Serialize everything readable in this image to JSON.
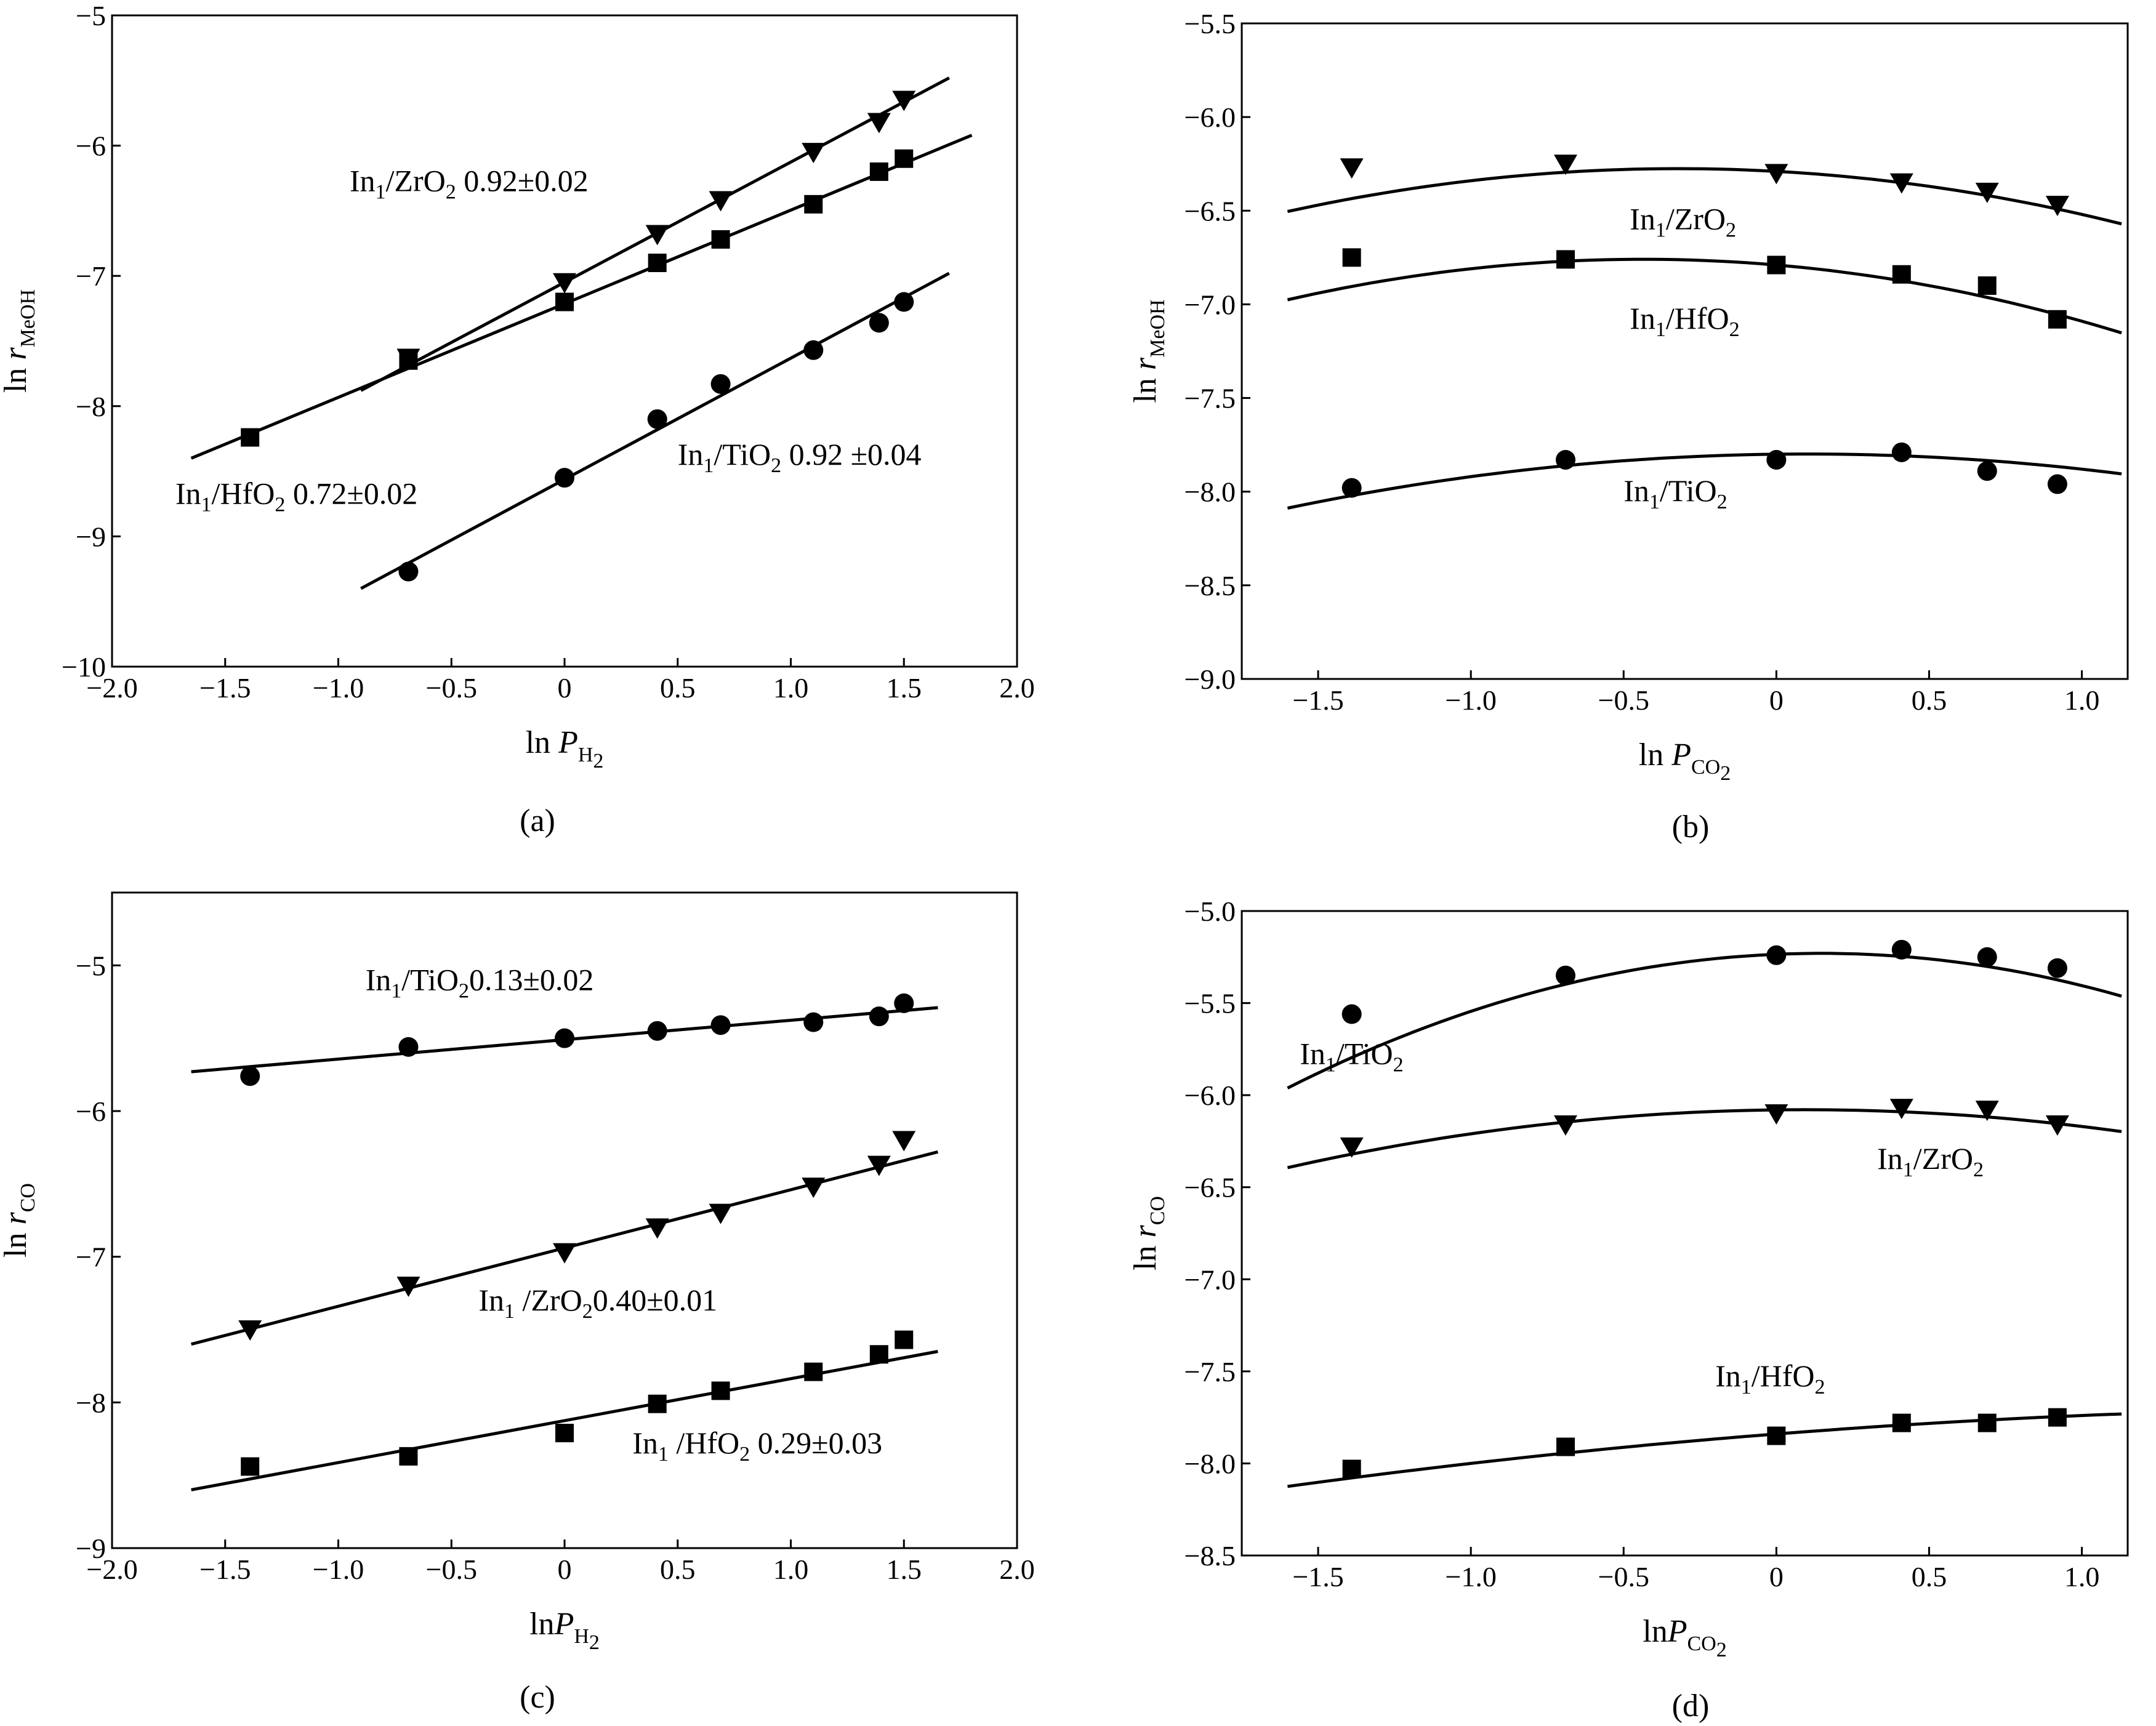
{
  "chart_data": [
    {
      "id": "a",
      "type": "scatter",
      "caption": "(a)",
      "xlabel": {
        "main": "ln ",
        "var": "P",
        "sub": "H",
        "subsub": "2"
      },
      "ylabel": {
        "main": "ln ",
        "var": "r",
        "sub": "MeOH"
      },
      "xlim": [
        -2.0,
        2.0
      ],
      "ylim": [
        -10,
        -5
      ],
      "xticks": [
        -2.0,
        -1.5,
        -1.0,
        -0.5,
        0,
        0.5,
        1.0,
        1.5,
        2.0
      ],
      "xtick_labels": [
        "−2.0",
        "−1.5",
        "−1.0",
        "−0.5",
        "0",
        "0.5",
        "1.0",
        "1.5",
        "2.0"
      ],
      "yticks": [
        -10,
        -9,
        -8,
        -7,
        -6,
        -5
      ],
      "ytick_labels": [
        "−10",
        "−9",
        "−8",
        "−7",
        "−6",
        "−5"
      ],
      "series": [
        {
          "name": "In1/ZrO2",
          "marker": "triangle-down",
          "x": [
            -0.69,
            0,
            0.41,
            0.69,
            1.1,
            1.39,
            1.5
          ],
          "y": [
            -7.63,
            -7.05,
            -6.68,
            -6.42,
            -6.05,
            -5.82,
            -5.65
          ],
          "fit": {
            "kind": "linear",
            "x": [
              -0.9,
              1.7
            ],
            "y": [
              -7.88,
              -5.48
            ]
          },
          "label": {
            "prefix": "In",
            "s1": "1",
            "mid": "/ZrO",
            "s2": "2",
            "suffix": " 0.92±0.02",
            "at": [
              -0.95,
              -6.35
            ]
          }
        },
        {
          "name": "In1/HfO2",
          "marker": "square",
          "x": [
            -1.39,
            -0.69,
            0,
            0.41,
            0.69,
            1.1,
            1.39,
            1.5
          ],
          "y": [
            -8.24,
            -7.65,
            -7.2,
            -6.9,
            -6.72,
            -6.45,
            -6.2,
            -6.1
          ],
          "fit": {
            "kind": "linear",
            "x": [
              -1.65,
              1.8
            ],
            "y": [
              -8.4,
              -5.92
            ]
          },
          "label": {
            "prefix": "In",
            "s1": "1",
            "mid": "/HfO",
            "s2": "2",
            "suffix": " 0.72±0.02",
            "at": [
              -1.72,
              -8.75
            ]
          }
        },
        {
          "name": "In1/TiO2",
          "marker": "circle",
          "x": [
            -0.69,
            0,
            0.41,
            0.69,
            1.1,
            1.39,
            1.5
          ],
          "y": [
            -9.27,
            -8.55,
            -8.1,
            -7.83,
            -7.57,
            -7.36,
            -7.2
          ],
          "fit": {
            "kind": "linear",
            "x": [
              -0.9,
              1.7
            ],
            "y": [
              -9.4,
              -6.98
            ]
          },
          "label": {
            "prefix": "In",
            "s1": "1",
            "mid": "/TiO",
            "s2": "2",
            "suffix": " 0.92 ±0.04",
            "at": [
              0.5,
              -8.45
            ]
          }
        }
      ]
    },
    {
      "id": "b",
      "type": "scatter",
      "caption": "(b)",
      "xlabel": {
        "main": "ln ",
        "var": "P",
        "sub": "CO",
        "subsub": "2"
      },
      "ylabel": {
        "main": "ln ",
        "var": "r",
        "sub": "MeOH"
      },
      "xlim": [
        -1.75,
        1.15
      ],
      "ylim": [
        -9.0,
        -5.5
      ],
      "xticks": [
        -1.5,
        -1.0,
        -0.5,
        0,
        0.5,
        1.0
      ],
      "xtick_labels": [
        "−1.5",
        "−1.0",
        "−0.5",
        "0",
        "0.5",
        "1.0"
      ],
      "yticks": [
        -9.0,
        -8.5,
        -8.0,
        -7.5,
        -7.0,
        -6.5,
        -6.0,
        -5.5
      ],
      "ytick_labels": [
        "−9.0",
        "−8.5",
        "−8.0",
        "−7.5",
        "−7.0",
        "−6.5",
        "−6.0",
        "−5.5"
      ],
      "series": [
        {
          "name": "In1/ZrO2",
          "marker": "triangle-down",
          "x": [
            -1.39,
            -0.69,
            0,
            0.41,
            0.69,
            0.92
          ],
          "y": [
            -6.27,
            -6.25,
            -6.3,
            -6.35,
            -6.4,
            -6.47
          ],
          "fit": {
            "kind": "quadratic",
            "xmin": -1.6,
            "xmax": 1.13,
            "coef": [
              -6.29,
              -0.09,
              -0.14
            ]
          },
          "label": {
            "prefix": "In",
            "s1": "1",
            "mid": "/ZrO",
            "s2": "2",
            "suffix": "",
            "at": [
              -0.48,
              -6.6
            ]
          }
        },
        {
          "name": "In1/HfO2",
          "marker": "square",
          "x": [
            -1.39,
            -0.69,
            0,
            0.41,
            0.69,
            0.92
          ],
          "y": [
            -6.75,
            -6.76,
            -6.79,
            -6.84,
            -6.9,
            -7.08
          ],
          "fit": {
            "kind": "quadratic",
            "xmin": -1.6,
            "xmax": 1.13,
            "coef": [
              -6.79,
              -0.14,
              -0.16
            ]
          },
          "label": {
            "prefix": "In",
            "s1": "1",
            "mid": "/HfO",
            "s2": "2",
            "suffix": "",
            "at": [
              -0.48,
              -7.13
            ]
          }
        },
        {
          "name": "In1/TiO2",
          "marker": "circle",
          "x": [
            -1.39,
            -0.69,
            0,
            0.41,
            0.69,
            0.92
          ],
          "y": [
            -7.98,
            -7.83,
            -7.83,
            -7.79,
            -7.89,
            -7.96
          ],
          "fit": {
            "kind": "quadratic",
            "xmin": -1.6,
            "xmax": 1.13,
            "coef": [
              -7.8,
              0.02,
              -0.1
            ]
          },
          "label": {
            "prefix": "In",
            "s1": "1",
            "mid": "/TiO",
            "s2": "2",
            "suffix": "",
            "at": [
              -0.5,
              -8.05
            ]
          }
        }
      ]
    },
    {
      "id": "c",
      "type": "scatter",
      "caption": "(c)",
      "xlabel": {
        "main": "ln",
        "var": "P",
        "sub": "H",
        "subsub": "2"
      },
      "ylabel": {
        "main": "ln ",
        "var": "r",
        "sub": "CO"
      },
      "xlim": [
        -2.0,
        2.0
      ],
      "ylim": [
        -9,
        -4.5
      ],
      "xticks": [
        -2.0,
        -1.5,
        -1.0,
        -0.5,
        0,
        0.5,
        1.0,
        1.5,
        2.0
      ],
      "xtick_labels": [
        "−2.0",
        "−1.5",
        "−1.0",
        "−0.5",
        "0",
        "0.5",
        "1.0",
        "1.5",
        "2.0"
      ],
      "yticks": [
        -9,
        -8,
        -7,
        -6,
        -5
      ],
      "ytick_labels": [
        "−9",
        "−8",
        "−7",
        "−6",
        "−5"
      ],
      "series": [
        {
          "name": "In1/TiO2",
          "marker": "circle",
          "x": [
            -1.39,
            -0.69,
            0,
            0.41,
            0.69,
            1.1,
            1.39,
            1.5
          ],
          "y": [
            -5.76,
            -5.56,
            -5.5,
            -5.45,
            -5.41,
            -5.39,
            -5.35,
            -5.26
          ],
          "fit": {
            "kind": "linear",
            "x": [
              -1.65,
              1.65
            ],
            "y": [
              -5.73,
              -5.29
            ]
          },
          "label": {
            "prefix": "In",
            "s1": "1",
            "mid": "/TiO",
            "s2": "2",
            "suffix": "0.13±0.02",
            "at": [
              -0.88,
              -5.17
            ]
          }
        },
        {
          "name": "In1/ZrO2",
          "marker": "triangle-down",
          "x": [
            -1.39,
            -0.69,
            0,
            0.41,
            0.69,
            1.1,
            1.39,
            1.5
          ],
          "y": [
            -7.5,
            -7.2,
            -6.97,
            -6.8,
            -6.7,
            -6.52,
            -6.37,
            -6.2
          ],
          "fit": {
            "kind": "linear",
            "x": [
              -1.65,
              1.65
            ],
            "y": [
              -7.6,
              -6.28
            ]
          },
          "label": {
            "prefix": "In",
            "s1": "1",
            "mid": " /ZrO",
            "s2": "2",
            "suffix": "0.40±0.01",
            "at": [
              -0.38,
              -7.37
            ]
          }
        },
        {
          "name": "In1/HfO2",
          "marker": "square",
          "x": [
            -1.39,
            -0.69,
            0,
            0.41,
            0.69,
            1.1,
            1.39,
            1.5
          ],
          "y": [
            -8.44,
            -8.37,
            -8.21,
            -8.01,
            -7.92,
            -7.79,
            -7.67,
            -7.57
          ],
          "fit": {
            "kind": "linear",
            "x": [
              -1.65,
              1.65
            ],
            "y": [
              -8.6,
              -7.65
            ]
          },
          "label": {
            "prefix": "In",
            "s1": "1",
            "mid": " /HfO",
            "s2": "2",
            "suffix": " 0.29±0.03",
            "at": [
              0.3,
              -8.35
            ]
          }
        }
      ]
    },
    {
      "id": "d",
      "type": "scatter",
      "caption": "(d)",
      "xlabel": {
        "main": "ln",
        "var": "P",
        "sub": "CO",
        "subsub": "2"
      },
      "ylabel": {
        "main": "ln ",
        "var": "r",
        "sub": "CO"
      },
      "xlim": [
        -1.75,
        1.15
      ],
      "ylim": [
        -8.5,
        -5.0
      ],
      "xticks": [
        -1.5,
        -1.0,
        -0.5,
        0,
        0.5,
        1.0
      ],
      "xtick_labels": [
        "−1.5",
        "−1.0",
        "−0.5",
        "0",
        "0.5",
        "1.0"
      ],
      "yticks": [
        -8.5,
        -8.0,
        -7.5,
        -7.0,
        -6.5,
        -6.0,
        -5.5,
        -5.0
      ],
      "ytick_labels": [
        "−8.5",
        "−8.0",
        "−7.5",
        "−7.0",
        "−6.5",
        "−6.0",
        "−5.5",
        "−5.0"
      ],
      "series": [
        {
          "name": "In1/TiO2",
          "marker": "circle",
          "x": [
            -1.39,
            -0.69,
            0,
            0.41,
            0.69,
            0.92
          ],
          "y": [
            -5.56,
            -5.35,
            -5.24,
            -5.21,
            -5.25,
            -5.31
          ],
          "fit": {
            "kind": "quadratic",
            "xmin": -1.6,
            "xmax": 1.13,
            "coef": [
              -5.235,
              0.07,
              -0.24
            ]
          },
          "label": {
            "prefix": "In",
            "s1": "1",
            "mid": "/TiO",
            "s2": "2",
            "suffix": "",
            "at": [
              -1.56,
              -5.83
            ]
          }
        },
        {
          "name": "In1/ZrO2",
          "marker": "triangle-down",
          "x": [
            -1.39,
            -0.69,
            0,
            0.41,
            0.69,
            0.92
          ],
          "y": [
            -6.28,
            -6.16,
            -6.1,
            -6.07,
            -6.08,
            -6.16
          ],
          "fit": {
            "kind": "quadratic",
            "xmin": -1.6,
            "xmax": 1.13,
            "coef": [
              -6.08,
              0.02,
              -0.11
            ]
          },
          "label": {
            "prefix": "In",
            "s1": "1",
            "mid": "/ZrO",
            "s2": "2",
            "suffix": "",
            "at": [
              0.33,
              -6.4
            ]
          }
        },
        {
          "name": "In1/HfO2",
          "marker": "square",
          "x": [
            -1.39,
            -0.69,
            0,
            0.41,
            0.69,
            0.92
          ],
          "y": [
            -8.03,
            -7.91,
            -7.85,
            -7.78,
            -7.78,
            -7.75
          ],
          "fit": {
            "kind": "quadratic",
            "xmin": -1.6,
            "xmax": 1.13,
            "coef": [
              -7.84,
              0.13,
              -0.03
            ]
          },
          "label": {
            "prefix": "In",
            "s1": "1",
            "mid": "/HfO",
            "s2": "2",
            "suffix": "",
            "at": [
              -0.2,
              -7.58
            ]
          }
        }
      ]
    }
  ]
}
